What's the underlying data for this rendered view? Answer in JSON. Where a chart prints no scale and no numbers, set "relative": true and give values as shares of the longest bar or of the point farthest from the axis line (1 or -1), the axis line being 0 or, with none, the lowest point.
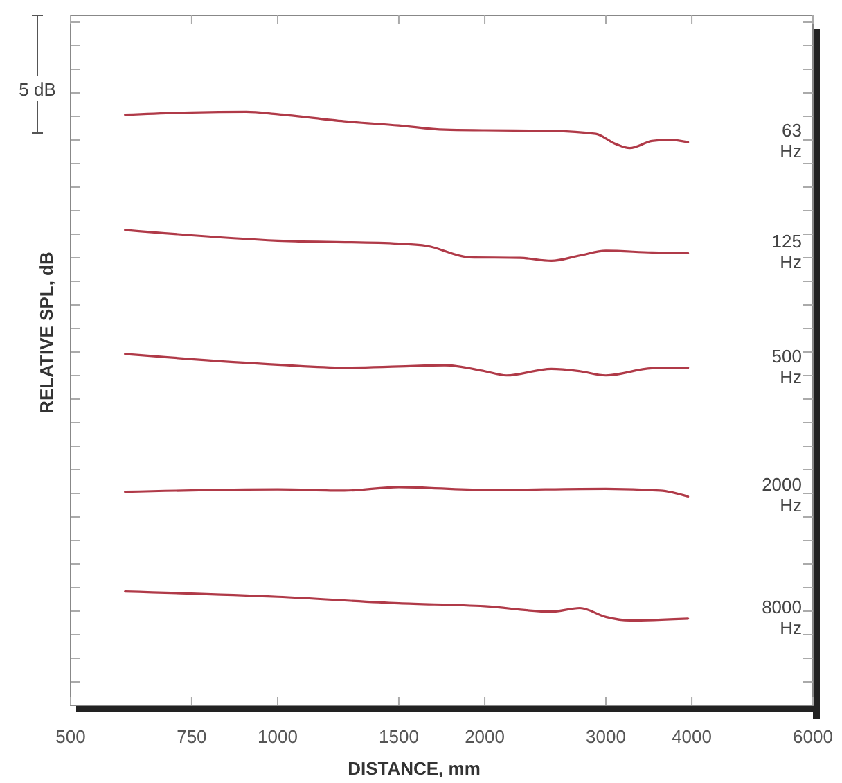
{
  "chart_data": {
    "type": "line",
    "relative": true,
    "xlabel": "DISTANCE, mm",
    "ylabel": "RELATIVE SPL, dB",
    "log": "x",
    "xlim": [
      500,
      6000
    ],
    "xticks": [
      500,
      750,
      1000,
      1500,
      2000,
      3000,
      4000,
      6000
    ],
    "marker": "none",
    "line_style": "solid",
    "annotations": [
      "5 dB"
    ],
    "series": [
      {
        "name": "63 Hz",
        "color": "#b03a48",
        "x": [
          600,
          750,
          900,
          1000,
          1250,
          1500,
          1750,
          2000,
          2500,
          2900,
          3100,
          3250,
          3500,
          3700,
          3950
        ],
        "values": [
          0.995,
          0.999,
          1.0,
          0.996,
          0.984,
          0.977,
          0.97,
          0.969,
          0.968,
          0.963,
          0.946,
          0.939,
          0.951,
          0.953,
          0.949
        ]
      },
      {
        "name": "125 Hz",
        "color": "#b03a48",
        "x": [
          600,
          1000,
          1500,
          1650,
          1900,
          2250,
          2500,
          2750,
          3000,
          3500,
          3950
        ],
        "values": [
          0.801,
          0.783,
          0.778,
          0.774,
          0.755,
          0.754,
          0.749,
          0.758,
          0.766,
          0.763,
          0.762
        ]
      },
      {
        "name": "500 Hz",
        "color": "#b03a48",
        "x": [
          600,
          1000,
          1250,
          1500,
          1750,
          2000,
          2150,
          2500,
          2750,
          3000,
          3500,
          3950
        ],
        "values": [
          0.592,
          0.574,
          0.569,
          0.571,
          0.573,
          0.563,
          0.556,
          0.567,
          0.563,
          0.556,
          0.568,
          0.569
        ]
      },
      {
        "name": "2000 Hz",
        "color": "#b03a48",
        "x": [
          600,
          1000,
          1250,
          1500,
          2000,
          3000,
          3600,
          3950
        ],
        "values": [
          0.36,
          0.364,
          0.362,
          0.368,
          0.363,
          0.365,
          0.362,
          0.352
        ]
      },
      {
        "name": "8000 Hz",
        "color": "#b03a48",
        "x": [
          600,
          1000,
          1500,
          2000,
          2500,
          2750,
          3000,
          3250,
          3950
        ],
        "values": [
          0.192,
          0.183,
          0.172,
          0.167,
          0.158,
          0.164,
          0.149,
          0.143,
          0.146
        ]
      }
    ]
  }
}
